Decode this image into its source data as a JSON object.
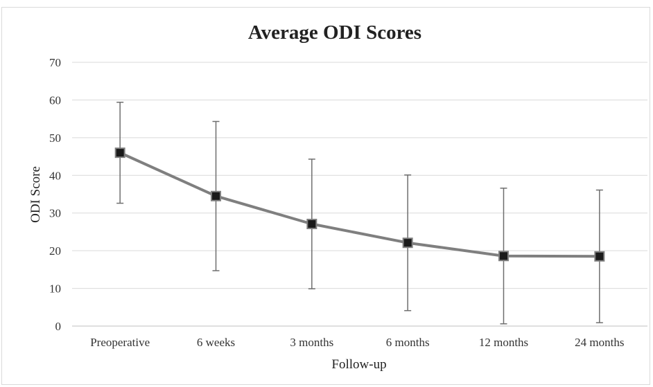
{
  "chart_data": {
    "type": "line",
    "title": "Average ODI Scores",
    "xlabel": "Follow-up",
    "ylabel": "ODI Score",
    "ylim": [
      0,
      70
    ],
    "yticks": [
      0,
      10,
      20,
      30,
      40,
      50,
      60,
      70
    ],
    "grid": true,
    "legend": "none",
    "categories": [
      "Preoperative",
      "6 weeks",
      "3 months",
      "6 months",
      "12 months",
      "24 months"
    ],
    "series": [
      {
        "values": [
          46.0,
          34.5,
          27.1,
          22.1,
          18.6,
          18.5
        ],
        "error_low": [
          32.6,
          14.7,
          9.9,
          4.1,
          0.6,
          0.9
        ],
        "error_high": [
          59.4,
          54.3,
          44.3,
          40.1,
          36.6,
          36.1
        ],
        "color": "#7f7f7f",
        "marker_color": "#1a1a1a"
      }
    ]
  }
}
